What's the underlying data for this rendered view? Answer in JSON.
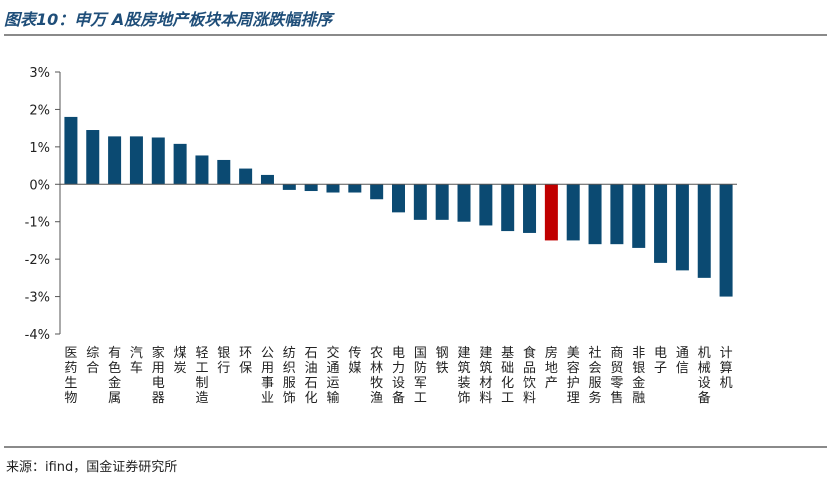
{
  "header": {
    "title": "图表10：申万 A股房地产板块本周涨跌幅排序"
  },
  "footer": {
    "source": "来源：ifind，国金证券研究所"
  },
  "colors": {
    "bar": "#0b4a72",
    "highlight": "#c00000",
    "title": "#1f4e79"
  },
  "chart_data": {
    "type": "bar",
    "title": "",
    "xlabel": "",
    "ylabel": "",
    "ylim": [
      -0.04,
      0.03
    ],
    "yticks": [
      "3%",
      "2%",
      "1%",
      "0%",
      "-1%",
      "-2%",
      "-3%",
      "-4%"
    ],
    "ytick_values": [
      0.03,
      0.02,
      0.01,
      0,
      -0.01,
      -0.02,
      -0.03,
      -0.04
    ],
    "grid": false,
    "highlight_category": "房地产",
    "categories": [
      "医药生物",
      "综合",
      "有色金属",
      "汽车",
      "家用电器",
      "煤炭",
      "轻工制造",
      "银行",
      "环保",
      "公用事业",
      "纺织服饰",
      "石油石化",
      "交通运输",
      "传媒",
      "农林牧渔",
      "电力设备",
      "国防军工",
      "钢铁",
      "建筑装饰",
      "建筑材料",
      "基础化工",
      "食品饮料",
      "房地产",
      "美容护理",
      "社会服务",
      "商贸零售",
      "非银金融",
      "电子",
      "通信",
      "机械设备",
      "计算机"
    ],
    "values": [
      0.018,
      0.0145,
      0.0128,
      0.0128,
      0.0125,
      0.0108,
      0.0077,
      0.0065,
      0.0042,
      0.0025,
      -0.0015,
      -0.0018,
      -0.0022,
      -0.0022,
      -0.004,
      -0.0075,
      -0.0095,
      -0.0095,
      -0.01,
      -0.011,
      -0.0125,
      -0.013,
      -0.015,
      -0.015,
      -0.016,
      -0.016,
      -0.017,
      -0.021,
      -0.023,
      -0.025,
      -0.03
    ]
  }
}
